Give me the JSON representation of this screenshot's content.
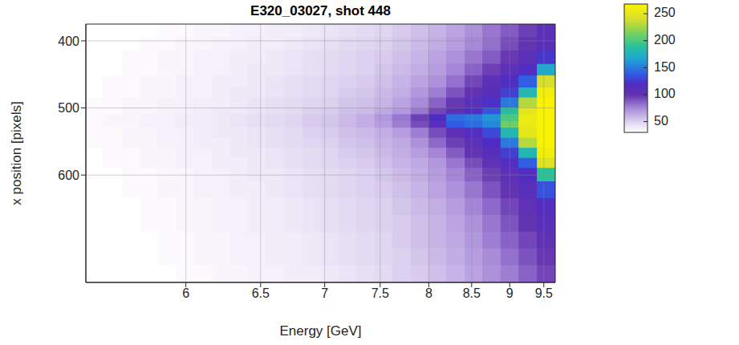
{
  "chart_data": {
    "type": "heatmap",
    "title": "E320_03027, shot 448",
    "x_label": "Energy [GeV]",
    "y_label": "x position [pixels]",
    "xlim": [
      5.44,
      9.68
    ],
    "xticks": [
      6,
      6.5,
      7,
      7.5,
      8,
      8.5,
      9,
      9.5
    ],
    "ylim": [
      375,
      760
    ],
    "yticks": [
      400,
      500,
      600
    ],
    "grid": true,
    "x_bins": [
      5.44,
      5.53,
      5.63,
      5.73,
      5.83,
      5.94,
      6.05,
      6.17,
      6.29,
      6.41,
      6.54,
      6.68,
      6.82,
      6.97,
      7.12,
      7.28,
      7.45,
      7.62,
      7.81,
      8,
      8.2,
      8.42,
      8.64,
      8.88,
      9.13,
      9.4,
      9.68
    ],
    "y_bins": [
      375,
      395,
      415,
      435,
      452,
      470,
      485,
      500,
      510,
      520,
      530,
      545,
      560,
      575,
      590,
      610,
      635,
      660,
      685,
      710,
      735,
      760
    ],
    "values": [
      [
        28,
        28,
        30,
        30,
        32,
        32,
        34,
        34,
        36,
        36,
        38,
        38,
        40,
        42,
        44,
        46,
        48,
        52,
        56,
        60,
        66,
        72,
        80,
        88,
        96,
        106
      ],
      [
        28,
        30,
        30,
        32,
        32,
        34,
        34,
        36,
        36,
        38,
        38,
        40,
        42,
        44,
        46,
        48,
        50,
        54,
        58,
        62,
        68,
        75,
        82,
        92,
        100,
        110
      ],
      [
        30,
        30,
        32,
        32,
        34,
        34,
        36,
        36,
        38,
        38,
        40,
        42,
        44,
        46,
        48,
        50,
        52,
        56,
        60,
        66,
        72,
        80,
        88,
        98,
        108,
        125
      ],
      [
        30,
        30,
        32,
        32,
        34,
        34,
        36,
        36,
        38,
        40,
        40,
        42,
        44,
        46,
        48,
        50,
        54,
        58,
        62,
        68,
        76,
        86,
        96,
        106,
        118,
        170
      ],
      [
        30,
        32,
        32,
        34,
        34,
        36,
        36,
        38,
        38,
        40,
        42,
        44,
        46,
        48,
        50,
        52,
        56,
        60,
        66,
        72,
        82,
        94,
        106,
        118,
        140,
        240
      ],
      [
        30,
        32,
        32,
        34,
        34,
        36,
        36,
        38,
        40,
        40,
        42,
        44,
        46,
        48,
        52,
        54,
        58,
        62,
        70,
        78,
        90,
        102,
        112,
        128,
        180,
        260
      ],
      [
        32,
        32,
        34,
        34,
        36,
        36,
        38,
        38,
        40,
        42,
        44,
        46,
        48,
        50,
        54,
        56,
        60,
        66,
        74,
        86,
        98,
        110,
        122,
        150,
        230,
        265
      ],
      [
        32,
        32,
        34,
        34,
        36,
        36,
        38,
        40,
        40,
        42,
        44,
        46,
        50,
        52,
        56,
        58,
        64,
        70,
        80,
        94,
        108,
        118,
        135,
        185,
        250,
        265
      ],
      [
        32,
        34,
        34,
        36,
        36,
        38,
        38,
        40,
        42,
        44,
        46,
        48,
        52,
        54,
        58,
        62,
        70,
        80,
        96,
        120,
        145,
        150,
        160,
        200,
        255,
        265
      ],
      [
        32,
        34,
        34,
        36,
        36,
        38,
        38,
        40,
        42,
        44,
        46,
        48,
        52,
        54,
        58,
        62,
        68,
        78,
        92,
        112,
        138,
        145,
        155,
        210,
        255,
        265
      ],
      [
        32,
        32,
        34,
        34,
        36,
        36,
        38,
        40,
        40,
        42,
        44,
        46,
        50,
        52,
        56,
        58,
        62,
        68,
        78,
        92,
        106,
        116,
        132,
        180,
        250,
        265
      ],
      [
        32,
        32,
        34,
        34,
        36,
        36,
        38,
        38,
        40,
        42,
        44,
        46,
        48,
        50,
        54,
        56,
        60,
        64,
        72,
        84,
        96,
        108,
        120,
        150,
        230,
        265
      ],
      [
        30,
        32,
        32,
        34,
        34,
        36,
        36,
        38,
        40,
        40,
        42,
        44,
        46,
        48,
        52,
        54,
        58,
        62,
        68,
        76,
        88,
        100,
        112,
        128,
        180,
        260
      ],
      [
        30,
        32,
        32,
        34,
        34,
        36,
        36,
        38,
        38,
        40,
        42,
        44,
        46,
        48,
        50,
        52,
        56,
        60,
        64,
        70,
        80,
        92,
        104,
        116,
        140,
        245
      ],
      [
        30,
        30,
        32,
        32,
        34,
        34,
        36,
        36,
        38,
        40,
        40,
        42,
        44,
        46,
        48,
        50,
        54,
        58,
        62,
        68,
        76,
        86,
        96,
        106,
        118,
        190
      ],
      [
        30,
        30,
        32,
        32,
        34,
        34,
        36,
        36,
        38,
        38,
        40,
        42,
        44,
        46,
        48,
        50,
        52,
        56,
        60,
        66,
        72,
        80,
        90,
        100,
        110,
        135
      ],
      [
        28,
        30,
        30,
        32,
        32,
        34,
        34,
        36,
        36,
        38,
        38,
        40,
        42,
        44,
        46,
        48,
        50,
        54,
        58,
        62,
        68,
        76,
        84,
        94,
        104,
        115
      ],
      [
        28,
        30,
        30,
        32,
        32,
        34,
        34,
        36,
        36,
        38,
        38,
        40,
        42,
        44,
        46,
        48,
        50,
        52,
        56,
        60,
        66,
        72,
        80,
        90,
        100,
        110
      ],
      [
        28,
        28,
        30,
        30,
        32,
        32,
        34,
        34,
        36,
        36,
        38,
        38,
        40,
        42,
        44,
        46,
        48,
        52,
        56,
        60,
        64,
        70,
        78,
        86,
        94,
        104
      ],
      [
        28,
        28,
        30,
        30,
        32,
        32,
        34,
        34,
        36,
        36,
        38,
        38,
        40,
        42,
        44,
        46,
        48,
        50,
        54,
        58,
        62,
        68,
        74,
        82,
        90,
        98
      ],
      [
        26,
        28,
        28,
        30,
        30,
        32,
        32,
        34,
        34,
        36,
        36,
        38,
        38,
        40,
        42,
        44,
        46,
        50,
        52,
        56,
        60,
        66,
        72,
        78,
        86,
        94
      ]
    ],
    "colorbar": {
      "range": [
        30,
        268
      ],
      "ticks": [
        50,
        100,
        150,
        200,
        250
      ]
    }
  }
}
